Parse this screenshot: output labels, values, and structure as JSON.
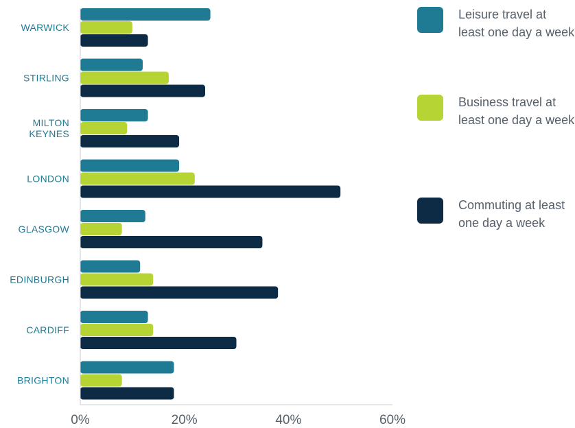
{
  "chart_data": {
    "type": "bar",
    "orientation": "horizontal",
    "categories": [
      "WARWICK",
      "STIRLING",
      "MILTON KEYNES",
      "LONDON",
      "GLASGOW",
      "EDINBURGH",
      "CARDIFF",
      "BRIGHTON"
    ],
    "category_lines": [
      [
        "WARWICK"
      ],
      [
        "STIRLING"
      ],
      [
        "MILTON",
        "KEYNES"
      ],
      [
        "LONDON"
      ],
      [
        "GLASGOW"
      ],
      [
        "EDINBURGH"
      ],
      [
        "CARDIFF"
      ],
      [
        "BRIGHTON"
      ]
    ],
    "series": [
      {
        "name": "Leisure travel at least one day a week",
        "color": "#1f7a94",
        "values": [
          25,
          12,
          13,
          19,
          12.5,
          11.5,
          13,
          18
        ]
      },
      {
        "name": "Business travel at least one day a week",
        "color": "#b6d433",
        "values": [
          10,
          17,
          9,
          22,
          8,
          14,
          14,
          8
        ]
      },
      {
        "name": "Commuting at least one day a week",
        "color": "#0d2b45",
        "values": [
          13,
          24,
          19,
          50,
          35,
          38,
          30,
          18
        ]
      }
    ],
    "xlim": [
      0,
      60
    ],
    "xticks": [
      "0%",
      "20%",
      "40%",
      "60%"
    ],
    "xtick_values": [
      0,
      20,
      40,
      60
    ],
    "grid": false,
    "legend_position": "right"
  }
}
